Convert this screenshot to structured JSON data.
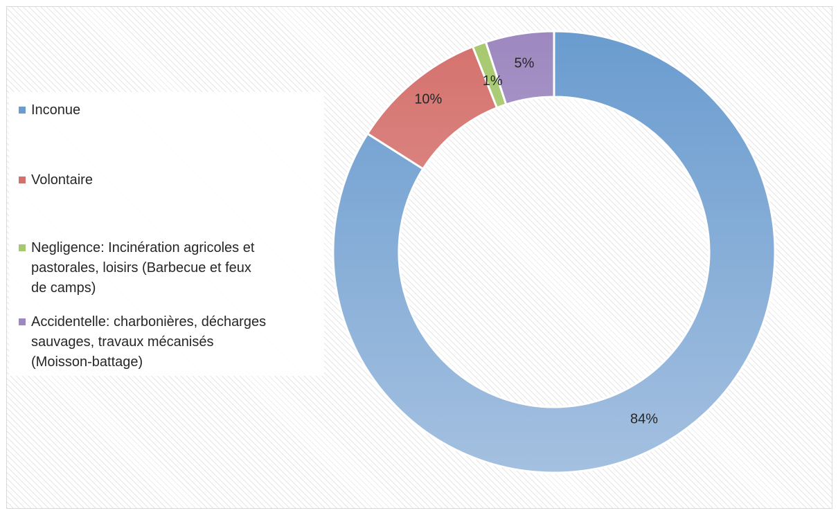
{
  "chart_data": {
    "type": "pie",
    "variant": "doughnut",
    "legend_position": "left",
    "categories": [
      "Inconue",
      "Volontaire",
      "Negligence: Incinération agricoles et pastorales, loisirs (Barbecue et feux de camps)",
      "Accidentelle: charbonières, décharges sauvages, travaux mécanisés (Moisson-battage)"
    ],
    "legend_lines": [
      [
        "Inconue"
      ],
      [
        "Volontaire"
      ],
      [
        "Negligence: Incinération agricoles et",
        "pastorales, loisirs (Barbecue et feux",
        "de camps)"
      ],
      [
        "Accidentelle: charbonières, décharges",
        "sauvages, travaux mécanisés",
        "(Moisson-battage)"
      ]
    ],
    "values": [
      84,
      10,
      1,
      5
    ],
    "data_labels": [
      "84%",
      "10%",
      "1%",
      "5%"
    ],
    "colors": [
      "#6a9ccf",
      "#d4706c",
      "#a6c86e",
      "#9d88bf"
    ],
    "light_colors": [
      "#a4c0e0",
      "#e8aaa6",
      "#c9e0a6",
      "#c9bedd"
    ],
    "title": ""
  }
}
